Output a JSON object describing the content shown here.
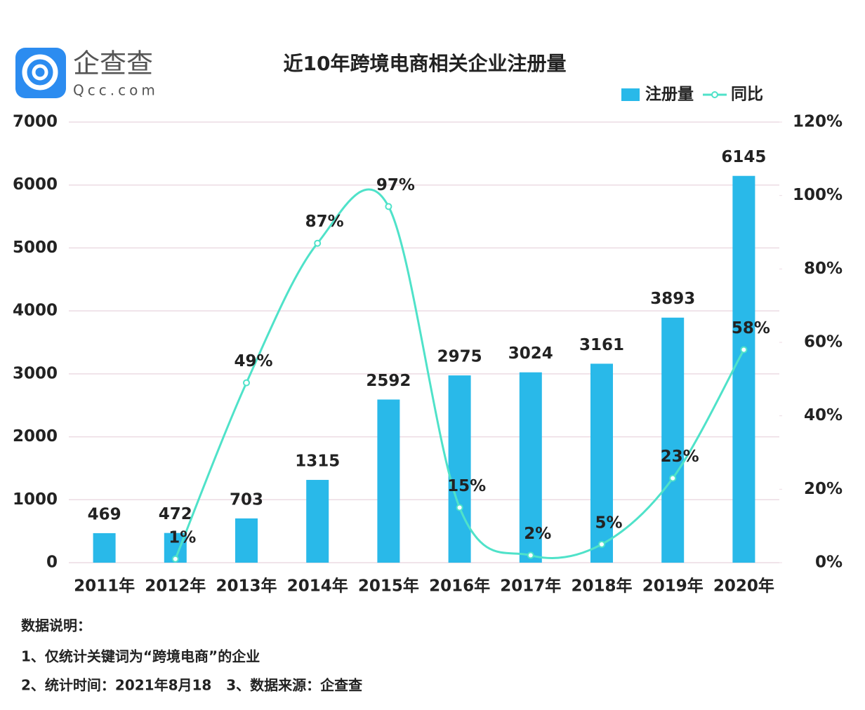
{
  "logo": {
    "name": "企查查",
    "domain": "Qcc.com"
  },
  "chart_data": {
    "type": "bar",
    "title": "近10年跨境电商相关企业注册量",
    "categories": [
      "2011年",
      "2012年",
      "2013年",
      "2014年",
      "2015年",
      "2016年",
      "2017年",
      "2018年",
      "2019年",
      "2020年"
    ],
    "series": [
      {
        "name": "注册量",
        "type": "bar",
        "color": "#29b9e9",
        "values": [
          469,
          472,
          703,
          1315,
          2592,
          2975,
          3024,
          3161,
          3893,
          6145
        ]
      },
      {
        "name": "同比",
        "type": "line",
        "axis": "y2",
        "color": "#4fe2c9",
        "values": [
          null,
          1,
          49,
          87,
          97,
          15,
          2,
          5,
          23,
          58
        ],
        "value_labels": [
          null,
          "1%",
          "49%",
          "87%",
          "97%",
          "15%",
          "2%",
          "5%",
          "23%",
          "58%"
        ]
      }
    ],
    "ylim": [
      0,
      7000
    ],
    "yticks": [
      0,
      1000,
      2000,
      3000,
      4000,
      5000,
      6000,
      7000
    ],
    "y2lim": [
      0,
      120
    ],
    "y2ticks": [
      {
        "value": 0,
        "label": "0%"
      },
      {
        "value": 20,
        "label": "20%"
      },
      {
        "value": 40,
        "label": "40%"
      },
      {
        "value": 60,
        "label": "60%"
      },
      {
        "value": 80,
        "label": "80%"
      },
      {
        "value": 100,
        "label": "100%"
      },
      {
        "value": 120,
        "label": "120%"
      }
    ],
    "grid": true,
    "legend": "top-right"
  },
  "notes": [
    "数据说明：",
    "1、仅统计关键词为“跨境电商”的企业",
    "2、统计时间：2021年8月18   3、数据来源：企查查"
  ]
}
